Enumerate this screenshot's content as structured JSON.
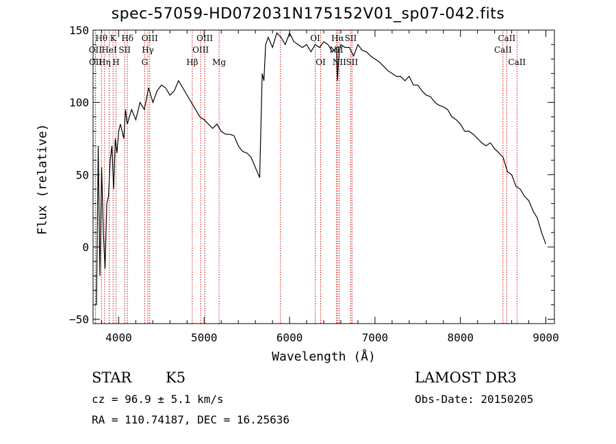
{
  "chart_data": {
    "type": "line",
    "title": "spec-57059-HD072031N175152V01_sp07-042.fits",
    "xlabel": "Wavelength (Å)",
    "ylabel": "Flux (relative)",
    "xlim": [
      3700,
      9100
    ],
    "ylim": [
      -53,
      150
    ],
    "xticks": [
      4000,
      5000,
      6000,
      7000,
      8000,
      9000
    ],
    "yticks": [
      -50,
      0,
      50,
      100,
      150
    ],
    "grid": false,
    "series": [
      {
        "x": [
          3740,
          3760,
          3780,
          3800,
          3820,
          3840,
          3860,
          3880,
          3900,
          3920,
          3940,
          3960,
          3980,
          4000,
          4020,
          4040,
          4060,
          4080,
          4100,
          4150,
          4200,
          4250,
          4300,
          4350,
          4400,
          4450,
          4500,
          4550,
          4600,
          4650,
          4700,
          4750,
          4800,
          4850,
          4900,
          4950,
          5000,
          5050,
          5100,
          5150,
          5200,
          5250,
          5300,
          5350,
          5400,
          5450,
          5500,
          5550,
          5600,
          5650,
          5680,
          5700,
          5720,
          5750,
          5800,
          5850,
          5900,
          5950,
          6000,
          6050,
          6100,
          6150,
          6200,
          6250,
          6300,
          6350,
          6400,
          6450,
          6500,
          6550,
          6560,
          6580,
          6600,
          6650,
          6700,
          6750,
          6800,
          6850,
          6900,
          6950,
          7000,
          7050,
          7100,
          7150,
          7200,
          7250,
          7300,
          7350,
          7400,
          7450,
          7500,
          7550,
          7600,
          7650,
          7700,
          7750,
          7800,
          7850,
          7900,
          7950,
          8000,
          8050,
          8100,
          8150,
          8200,
          8250,
          8300,
          8350,
          8400,
          8450,
          8500,
          8550,
          8600,
          8650,
          8700,
          8750,
          8800,
          8850,
          8900,
          8950,
          9000
        ],
        "y": [
          -40,
          70,
          -20,
          55,
          10,
          -15,
          30,
          35,
          60,
          70,
          40,
          75,
          65,
          80,
          85,
          80,
          75,
          95,
          85,
          95,
          88,
          100,
          95,
          110,
          100,
          108,
          112,
          110,
          105,
          108,
          115,
          110,
          105,
          100,
          95,
          90,
          88,
          85,
          82,
          85,
          80,
          78,
          78,
          77,
          70,
          66,
          65,
          62,
          55,
          48,
          120,
          115,
          140,
          145,
          138,
          148,
          145,
          140,
          148,
          142,
          140,
          138,
          140,
          135,
          140,
          138,
          142,
          140,
          135,
          138,
          115,
          135,
          140,
          138,
          138,
          132,
          140,
          136,
          135,
          132,
          130,
          128,
          125,
          122,
          120,
          118,
          118,
          115,
          118,
          112,
          112,
          108,
          105,
          104,
          100,
          98,
          97,
          95,
          90,
          88,
          85,
          80,
          80,
          78,
          75,
          72,
          70,
          72,
          68,
          65,
          62,
          52,
          50,
          42,
          40,
          35,
          32,
          25,
          20,
          10,
          2
        ]
      }
    ],
    "lines": [
      {
        "label": "Hθ",
        "wl": 3798,
        "row": 1
      },
      {
        "label": "OII",
        "wl": 3727,
        "row": 2
      },
      {
        "label": "OII",
        "wl": 3729,
        "row": 3
      },
      {
        "label": "K",
        "wl": 3934,
        "row": 1
      },
      {
        "label": "HeI",
        "wl": 3889,
        "row": 2
      },
      {
        "label": "Hη",
        "wl": 3835,
        "row": 3
      },
      {
        "label": "Hδ",
        "wl": 4102,
        "row": 1
      },
      {
        "label": "SII",
        "wl": 4070,
        "row": 2
      },
      {
        "label": "H",
        "wl": 3968,
        "row": 3
      },
      {
        "label": "OIII",
        "wl": 4363,
        "row": 1
      },
      {
        "label": "Hγ",
        "wl": 4341,
        "row": 2
      },
      {
        "label": "G",
        "wl": 4304,
        "row": 3
      },
      {
        "label": "Hβ",
        "wl": 4861,
        "row": 3
      },
      {
        "label": "OIII",
        "wl": 5007,
        "row": 1
      },
      {
        "label": "OIII",
        "wl": 4959,
        "row": 2
      },
      {
        "label": "Mg",
        "wl": 5175,
        "row": 3
      },
      {
        "label": "",
        "wl": 5893,
        "row": 1
      },
      {
        "label": "OI",
        "wl": 6300,
        "row": 1
      },
      {
        "label": "OI",
        "wl": 6364,
        "row": 3
      },
      {
        "label": "Hα",
        "wl": 6563,
        "row": 1
      },
      {
        "label": "NII",
        "wl": 6548,
        "row": 2
      },
      {
        "label": "NII",
        "wl": 6583,
        "row": 3
      },
      {
        "label": "SII",
        "wl": 6716,
        "row": 1
      },
      {
        "label": "SII",
        "wl": 6731,
        "row": 3
      },
      {
        "label": "CaII",
        "wl": 8542,
        "row": 1
      },
      {
        "label": "CaII",
        "wl": 8498,
        "row": 2
      },
      {
        "label": "CaII",
        "wl": 8662,
        "row": 3
      }
    ]
  },
  "info": {
    "object_class": "STAR",
    "subclass": "K5",
    "survey": "LAMOST DR3",
    "cz": "cz = 96.9 ± 5.1 km/s",
    "obs_date": "Obs-Date: 20150205",
    "coords": "RA = 110.74187, DEC =  16.25636"
  },
  "colors": {
    "axis": "#000000",
    "spectrum": "#000000",
    "line_marker": "#cc0000"
  }
}
